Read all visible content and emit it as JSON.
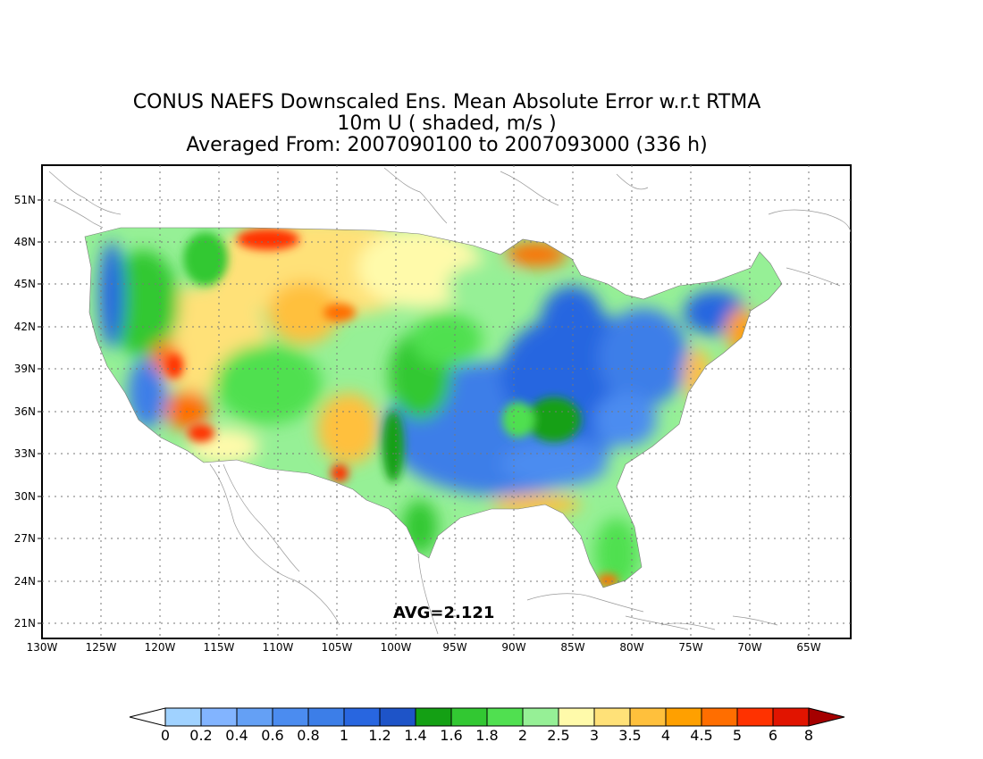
{
  "title": {
    "line1": "CONUS NAEFS Downscaled Ens. Mean Absolute Error w.r.t RTMA",
    "line2": "10m U ( shaded, m/s )",
    "line3": "Averaged From: 2007090100 to 2007093000 (336 h)"
  },
  "average_label": "AVG=2.121",
  "lat_labels": [
    "51N",
    "48N",
    "45N",
    "42N",
    "39N",
    "36N",
    "33N",
    "30N",
    "27N",
    "24N",
    "21N"
  ],
  "lon_labels": [
    "130W",
    "125W",
    "120W",
    "115W",
    "110W",
    "105W",
    "100W",
    "95W",
    "90W",
    "85W",
    "80W",
    "75W",
    "70W",
    "65W"
  ],
  "colorbar": {
    "labels": [
      "0",
      "0.2",
      "0.4",
      "0.6",
      "0.8",
      "1",
      "1.2",
      "1.4",
      "1.6",
      "1.8",
      "2",
      "2.5",
      "3",
      "3.5",
      "4",
      "4.5",
      "5",
      "6",
      "8"
    ],
    "colors": [
      "#a0d2ff",
      "#82b4ff",
      "#64a0f5",
      "#4b8cf0",
      "#3c7ee8",
      "#2866e0",
      "#1e54c8",
      "#14a014",
      "#32c832",
      "#50e050",
      "#96f096",
      "#fffaaa",
      "#ffe178",
      "#ffc03c",
      "#ffa000",
      "#ff6e00",
      "#ff3200",
      "#e11400",
      "#a50000"
    ]
  }
}
